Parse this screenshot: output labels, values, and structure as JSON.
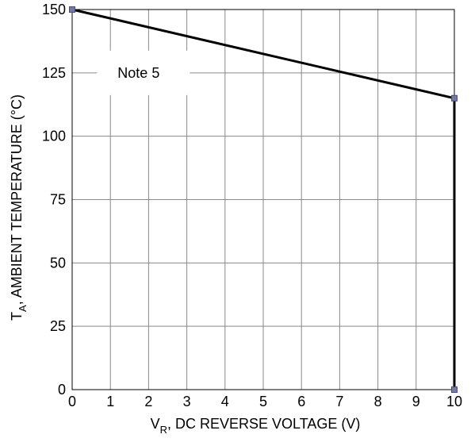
{
  "chart_data": {
    "type": "line",
    "title": "",
    "xlabel": {
      "main": "V",
      "sub": "R",
      "rest": ", DC REVERSE VOLTAGE (V)"
    },
    "ylabel": {
      "main": "T",
      "sub": "A",
      "rest": ", AMBIENT TEMPERATURE (°C)"
    },
    "xlim": [
      0,
      10
    ],
    "ylim": [
      0,
      150
    ],
    "xticks": [
      0,
      1,
      2,
      3,
      4,
      5,
      6,
      7,
      8,
      9,
      10
    ],
    "yticks": [
      0,
      25,
      50,
      75,
      100,
      125,
      150
    ],
    "grid": true,
    "series": [
      {
        "points": [
          {
            "x": 0,
            "y": 150
          },
          {
            "x": 10,
            "y": 115
          },
          {
            "x": 10,
            "y": 0
          }
        ]
      }
    ],
    "annotations": [
      {
        "text": "Note 5",
        "x": 1.5,
        "y": 125
      }
    ],
    "colors": {
      "line": "#000000",
      "marker": "#7878a6",
      "grid": "#8a8a8a"
    }
  }
}
